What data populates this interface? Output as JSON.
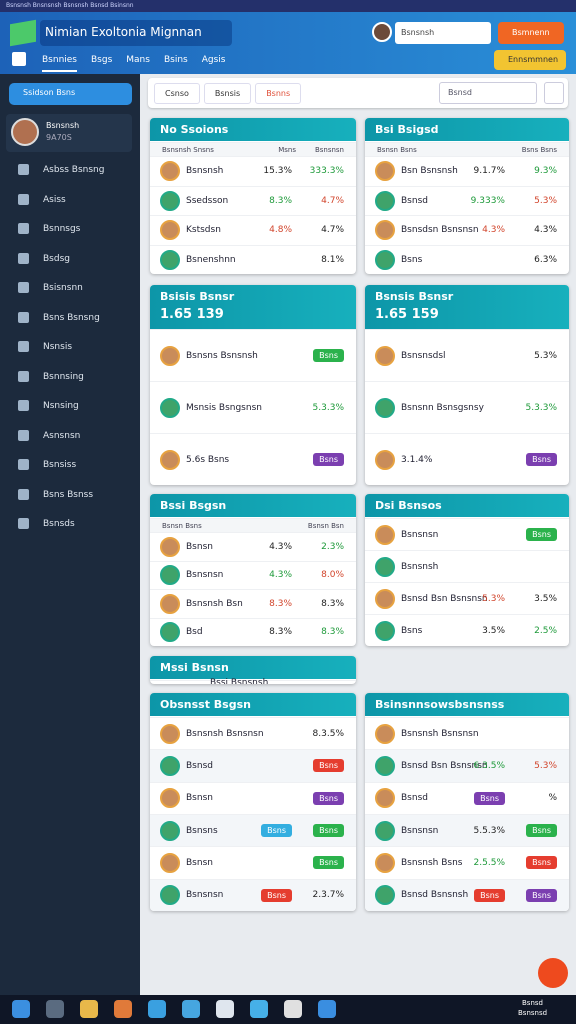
{
  "window_title": "Bsnsnsh Bnsnsnsh Bsnsnsh Bsnsd Bsinsnn",
  "header": {
    "title": "Nimian Exoltonia Mignnan",
    "search": "Bsnsnsh",
    "primary_button": "Bsmnenn",
    "secondary_button": "Ennsmmnen",
    "nav": [
      "Bsnnies",
      "Bsgs",
      "Mans",
      "Bsins",
      "Agsis"
    ]
  },
  "sidebar": {
    "button": "Ssidson Bsns",
    "profile": {
      "name": "Bsnsnsh",
      "id": "9A70S"
    },
    "menu": [
      "Asbss Bsnsng",
      "Asiss",
      "Bsnnsgs",
      "Bsdsg",
      "Bsisnsnn",
      "Bsns Bsnsng",
      "Nsnsis",
      "Bsnnsing",
      "Nsnsing",
      "Asnsnsn",
      "Bsnsiss",
      "Bsns Bsnss",
      "Bsnsds"
    ]
  },
  "toolbar": {
    "tabs": [
      "Csnso",
      "Bsnsis",
      "Bsnns"
    ],
    "search": "Bsnsd"
  },
  "panels": [
    {
      "title": "No Ssoions",
      "head": [
        "Bsnsnsh Snsns",
        "Msns",
        "Bsnsnsn"
      ],
      "rows": [
        {
          "label": "Bsnsnsh",
          "values": [
            "15.3%",
            "333.3%"
          ]
        },
        {
          "label": "Ssedsson",
          "values": [
            "8.3%",
            "4.7%"
          ]
        },
        {
          "label": "Kstsdsn",
          "values": [
            "4.8%",
            "4.7%"
          ]
        },
        {
          "label": "Bsnenshnn",
          "values": [
            "8.1%"
          ]
        }
      ]
    },
    {
      "title": "Bsi Bsigsd",
      "head": [
        "Bsnsn Bsns",
        "Bsns Bsns"
      ],
      "rows": [
        {
          "label": "Bsn Bsnsnsh",
          "values": [
            "9.1.7%",
            "9.3%"
          ]
        },
        {
          "label": "Bsnsd",
          "values": [
            "9.333%",
            "5.3%"
          ]
        },
        {
          "label": "Bsnsdsn Bsnsnsn",
          "values": [
            "4.3%",
            "4.3%"
          ]
        },
        {
          "label": "Bsns",
          "values": [
            "6.3%"
          ]
        }
      ]
    },
    {
      "title": "Bsisis Bsnsr",
      "big": "1.65 139",
      "rows": [
        {
          "label": "Bsnsns Bsnsnsh",
          "values": [
            "Bsns"
          ]
        },
        {
          "label": "Msnsis Bsngsnsn",
          "values": [
            "5.3.3%"
          ]
        },
        {
          "label": "5.6s Bsns",
          "values": [
            "Bsns"
          ]
        }
      ]
    },
    {
      "title": "Bsnsis Bsnsr",
      "big": "1.65 159",
      "rows": [
        {
          "label": "Bsnsnsdsl",
          "values": [
            "5.3%"
          ]
        },
        {
          "label": "Bsnsnn Bsnsgsnsy",
          "values": [
            "5.3.3%"
          ]
        },
        {
          "label": "3.1.4%",
          "values": [
            "Bsns"
          ]
        }
      ]
    },
    {
      "title": "Bssi Bsgsn",
      "head": [
        "Bsnsn Bsns",
        "Bsnsn Bsn"
      ],
      "rows": [
        {
          "label": "Bsnsn",
          "values": [
            "4.3%",
            "2.3%"
          ]
        },
        {
          "label": "Bsnsnsn",
          "values": [
            "4.3%",
            "8.0%"
          ]
        },
        {
          "label": "Bsnsnsh Bsn",
          "values": [
            "8.3%",
            "8.3%"
          ]
        },
        {
          "label": "Bsd",
          "values": [
            "8.3%",
            "8.3%"
          ]
        }
      ]
    },
    {
      "title": "Dsi Bsnsos",
      "rows": [
        {
          "label": "Bsnsnsn",
          "values": [
            "Bsns"
          ]
        },
        {
          "label": "Bsnsnsh",
          "values": []
        },
        {
          "label": "Bsnsd Bsn Bsnsnsn",
          "values": [
            "5.3%",
            "3.5%"
          ]
        },
        {
          "label": "Bsns",
          "values": [
            "3.5%",
            "2.5%"
          ]
        }
      ]
    },
    {
      "title": "Mssi Bsnsn",
      "rows": [
        {
          "label": "Bssi Bsnsnsh",
          "values": []
        }
      ]
    },
    {
      "title": "Obsnsst Bsgsn",
      "rows": [
        {
          "label": "Bsnsnsh Bsnsnsn",
          "values": [
            "8.3.5%"
          ]
        },
        {
          "label": "Bsnsd",
          "values": [
            "Bsns"
          ]
        },
        {
          "label": "Bsnsn",
          "values": [
            "Bsns"
          ]
        },
        {
          "label": "Bsnsns",
          "values": [
            "Bsns",
            "Bsns"
          ]
        },
        {
          "label": "Bsnsn",
          "values": [
            "Bsns"
          ]
        },
        {
          "label": "Bsnsnsn",
          "values": [
            "Bsns",
            "2.3.7%"
          ]
        }
      ]
    },
    {
      "title": "Bsinsnnsowsbsnsnss",
      "rows": [
        {
          "label": "Bsnsnsh Bsnsnsn",
          "values": []
        },
        {
          "label": "Bsnsd Bsn Bsnsnsn",
          "values": [
            "6.3.5%",
            "5.3%"
          ]
        },
        {
          "label": "Bsnsd",
          "values": [
            "Bsns",
            "%"
          ]
        },
        {
          "label": "Bsnsnsn",
          "values": [
            "5.5.3%",
            "Bsns"
          ]
        },
        {
          "label": "Bsnsnsh Bsns",
          "values": [
            "2.5.5%",
            "Bsns"
          ]
        },
        {
          "label": "Bsnsd Bsnsnsh",
          "values": [
            "Bsns",
            "Bsns"
          ]
        }
      ]
    }
  ],
  "taskbar": {
    "time": "Bsnsd",
    "date": "Bsnsnsd"
  }
}
